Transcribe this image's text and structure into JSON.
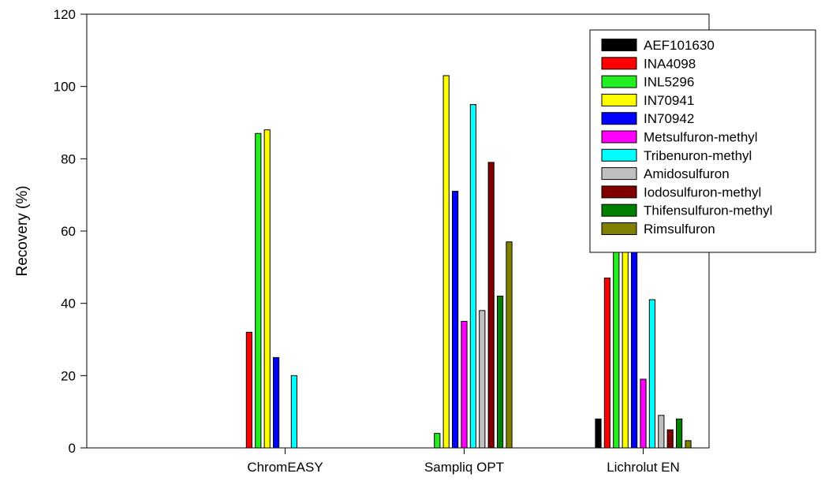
{
  "chart_data": {
    "type": "bar",
    "title": "",
    "xlabel": "",
    "ylabel": "Recovery (%)",
    "ylim": [
      0,
      120
    ],
    "yticks": [
      0,
      20,
      40,
      60,
      80,
      100,
      120
    ],
    "grid": false,
    "legend_position": "top-right",
    "categories": [
      "ChromEASY",
      "Sampliq OPT",
      "Lichrolut EN"
    ],
    "series": [
      {
        "name": "AEF101630",
        "color": "#000000",
        "values": [
          0,
          0,
          8
        ]
      },
      {
        "name": "INA4098",
        "color": "#ff0000",
        "values": [
          32,
          0,
          47
        ]
      },
      {
        "name": "INL5296",
        "color": "#22ee22",
        "values": [
          87,
          4,
          76
        ]
      },
      {
        "name": "IN70941",
        "color": "#ffff00",
        "values": [
          88,
          103,
          84
        ]
      },
      {
        "name": "IN70942",
        "color": "#0000ff",
        "values": [
          25,
          71,
          56
        ]
      },
      {
        "name": "Metsulfuron-methyl",
        "color": "#ff00ff",
        "values": [
          0,
          35,
          19
        ]
      },
      {
        "name": "Tribenuron-methyl",
        "color": "#00ffff",
        "values": [
          20,
          95,
          41
        ]
      },
      {
        "name": "Amidosulfuron",
        "color": "#c0c0c0",
        "values": [
          0,
          38,
          9
        ]
      },
      {
        "name": "Iodosulfuron-methyl",
        "color": "#800000",
        "values": [
          0,
          79,
          5
        ]
      },
      {
        "name": "Thifensulfuron-methyl",
        "color": "#008000",
        "values": [
          0,
          42,
          8
        ]
      },
      {
        "name": "Rimsulfuron",
        "color": "#808000",
        "values": [
          0,
          57,
          2
        ]
      }
    ]
  }
}
